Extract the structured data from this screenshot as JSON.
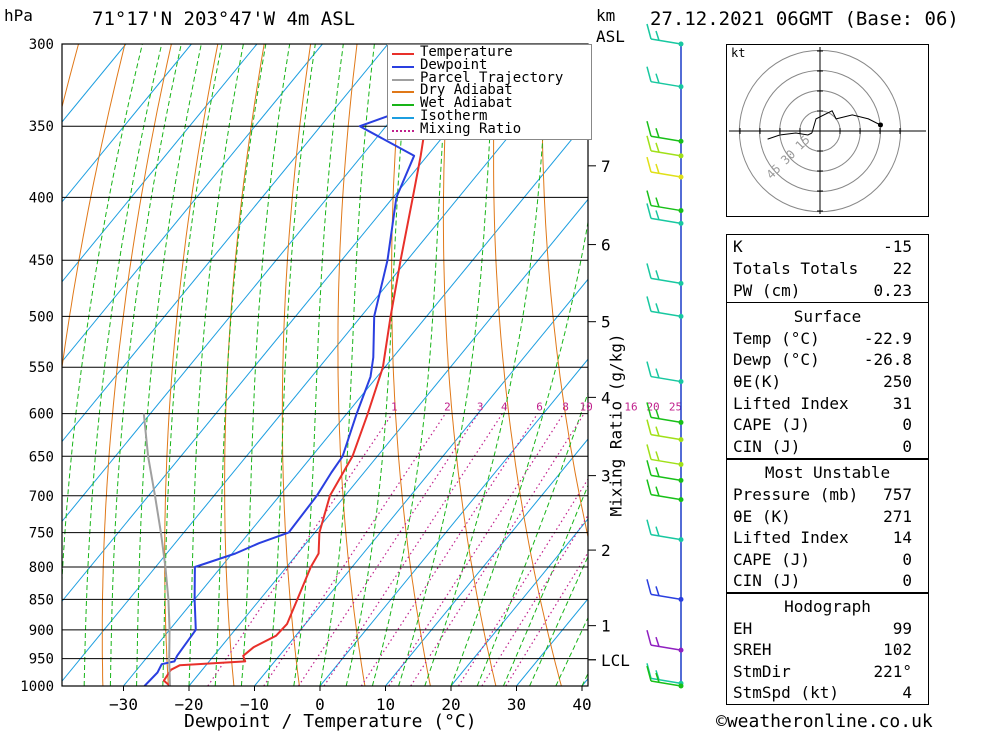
{
  "header": {
    "left_unit": "hPa",
    "location": "71°17'N 203°47'W 4m ASL",
    "right_unit_1": "km",
    "right_unit_2": "ASL",
    "datetime": "27.12.2021 06GMT (Base: 06)"
  },
  "footer": {
    "credit": "©weatheronline.co.uk"
  },
  "legend": [
    {
      "label": "Temperature",
      "color": "#e8302a",
      "style": "solid"
    },
    {
      "label": "Dewpoint",
      "color": "#2a3fe0",
      "style": "solid"
    },
    {
      "label": "Parcel Trajectory",
      "color": "#a0a0a0",
      "style": "solid"
    },
    {
      "label": "Dry Adiabat",
      "color": "#e07818",
      "style": "solid"
    },
    {
      "label": "Wet Adiabat",
      "color": "#18b418",
      "style": "solid"
    },
    {
      "label": "Isotherm",
      "color": "#1c9ee0",
      "style": "solid"
    },
    {
      "label": "Mixing Ratio",
      "color": "#c0208c",
      "style": "dotted"
    }
  ],
  "chart_data": {
    "type": "line",
    "subtype": "skew-T log-P diagram",
    "xlabel": "Dewpoint / Temperature (°C)",
    "ylabel_left": "hPa",
    "ylabel_right": "Mixing Ratio (g/kg)",
    "x_ticks": [
      -30,
      -20,
      -10,
      0,
      10,
      20,
      30,
      40
    ],
    "pressure_ticks": [
      300,
      350,
      400,
      450,
      500,
      550,
      600,
      650,
      700,
      750,
      800,
      850,
      900,
      950,
      1000
    ],
    "km_ticks": [
      {
        "label": "7",
        "p": 377
      },
      {
        "label": "6",
        "p": 437
      },
      {
        "label": "5",
        "p": 505
      },
      {
        "label": "4",
        "p": 582
      },
      {
        "label": "3",
        "p": 674
      },
      {
        "label": "2",
        "p": 775
      },
      {
        "label": "1",
        "p": 893
      },
      {
        "label": "LCL",
        "p": 952
      }
    ],
    "mixing_ratio_labels": [
      "1",
      "2",
      "3",
      "4",
      "6",
      "8",
      "10",
      "16",
      "20",
      "25"
    ],
    "series": [
      {
        "name": "Temperature",
        "color": "#e8302a",
        "points": [
          [
            1000,
            -22.9
          ],
          [
            990,
            -24.5
          ],
          [
            970,
            -24.8
          ],
          [
            962,
            -24.0
          ],
          [
            955,
            -14.5
          ],
          [
            945,
            -15.5
          ],
          [
            930,
            -15.0
          ],
          [
            910,
            -13.0
          ],
          [
            890,
            -12.8
          ],
          [
            850,
            -14.3
          ],
          [
            800,
            -16.3
          ],
          [
            780,
            -16.8
          ],
          [
            750,
            -19.3
          ],
          [
            700,
            -22.3
          ],
          [
            650,
            -23.8
          ],
          [
            600,
            -26.8
          ],
          [
            550,
            -30.3
          ],
          [
            500,
            -35.5
          ],
          [
            450,
            -41.0
          ],
          [
            400,
            -47.0
          ],
          [
            370,
            -51.0
          ],
          [
            350,
            -54.0
          ],
          [
            320,
            -57.0
          ],
          [
            300,
            -60.0
          ]
        ]
      },
      {
        "name": "Dewpoint",
        "color": "#2a3fe0",
        "points": [
          [
            1000,
            -26.8
          ],
          [
            975,
            -26.5
          ],
          [
            960,
            -26.9
          ],
          [
            955,
            -25.3
          ],
          [
            945,
            -25.6
          ],
          [
            900,
            -26.0
          ],
          [
            850,
            -30.0
          ],
          [
            800,
            -34.0
          ],
          [
            780,
            -29.5
          ],
          [
            765,
            -27.2
          ],
          [
            750,
            -24.0
          ],
          [
            700,
            -24.3
          ],
          [
            670,
            -25.0
          ],
          [
            650,
            -25.3
          ],
          [
            600,
            -28.5
          ],
          [
            560,
            -31.0
          ],
          [
            540,
            -33.0
          ],
          [
            500,
            -38.0
          ],
          [
            450,
            -43.0
          ],
          [
            400,
            -49.5
          ],
          [
            370,
            -52.0
          ],
          [
            350,
            -64.0
          ],
          [
            335,
            -57.0
          ],
          [
            320,
            -59.0
          ],
          [
            300,
            -62.0
          ]
        ]
      },
      {
        "name": "Parcel Trajectory",
        "color": "#a0a0a0",
        "points": [
          [
            1000,
            -22.9
          ],
          [
            952,
            -26.3
          ],
          [
            900,
            -30.0
          ],
          [
            850,
            -34.0
          ],
          [
            800,
            -38.5
          ],
          [
            750,
            -43.5
          ],
          [
            700,
            -49.0
          ],
          [
            650,
            -55.0
          ],
          [
            600,
            -61.0
          ]
        ]
      }
    ],
    "surface_marker_p": 952,
    "hodograph": {
      "unit_label": "kt",
      "ring_labels": [
        "15",
        "30",
        "45"
      ],
      "path_kt": [
        [
          -13,
          -2
        ],
        [
          -10,
          -1
        ],
        [
          -6,
          -0.5
        ],
        [
          -3,
          -1
        ],
        [
          -2,
          -0.5
        ]
      ],
      "upper_path_kt": [
        [
          -2,
          -0.5
        ],
        [
          -1,
          3
        ],
        [
          3,
          5
        ],
        [
          4,
          3
        ],
        [
          8,
          4
        ],
        [
          12,
          3
        ],
        [
          15,
          1.5
        ]
      ]
    },
    "wind_barbs": [
      {
        "p": 300,
        "color": "#18c8a0"
      },
      {
        "p": 325,
        "color": "#18c8a0"
      },
      {
        "p": 360,
        "color": "#18c018"
      },
      {
        "p": 370,
        "color": "#a0e018"
      },
      {
        "p": 385,
        "color": "#e0e018"
      },
      {
        "p": 410,
        "color": "#18c018"
      },
      {
        "p": 420,
        "color": "#18c8a0"
      },
      {
        "p": 470,
        "color": "#18c8a0"
      },
      {
        "p": 500,
        "color": "#18c8a0"
      },
      {
        "p": 565,
        "color": "#18c8a0"
      },
      {
        "p": 610,
        "color": "#18c018"
      },
      {
        "p": 630,
        "color": "#a0e018"
      },
      {
        "p": 660,
        "color": "#a0e018"
      },
      {
        "p": 680,
        "color": "#18c018"
      },
      {
        "p": 705,
        "color": "#18c018"
      },
      {
        "p": 760,
        "color": "#18c8a0"
      },
      {
        "p": 850,
        "color": "#2a3fe0"
      },
      {
        "p": 935,
        "color": "#9020c0"
      },
      {
        "p": 995,
        "color": "#18c8a0"
      },
      {
        "p": 1000,
        "color": "#18c018"
      }
    ]
  },
  "indices": {
    "k_label": "K",
    "k_value": "-15",
    "tt_label": "Totals Totals",
    "tt_value": "22",
    "pw_label": "PW (cm)",
    "pw_value": "0.23",
    "surface_title": "Surface",
    "s_temp_label": "Temp (°C)",
    "s_temp_value": "-22.9",
    "s_dewp_label": "Dewp (°C)",
    "s_dewp_value": "-26.8",
    "s_theta_label": "θE(K)",
    "s_theta_value": "250",
    "s_li_label": "Lifted Index",
    "s_li_value": "31",
    "s_cape_label": "CAPE (J)",
    "s_cape_value": "0",
    "s_cin_label": "CIN (J)",
    "s_cin_value": "0",
    "mu_title": "Most Unstable",
    "mu_pres_label": "Pressure (mb)",
    "mu_pres_value": "757",
    "mu_theta_label": "θE (K)",
    "mu_theta_value": "271",
    "mu_li_label": "Lifted Index",
    "mu_li_value": "14",
    "mu_cape_label": "CAPE (J)",
    "mu_cape_value": "0",
    "mu_cin_label": "CIN (J)",
    "mu_cin_value": "0",
    "hodo_title": "Hodograph",
    "eh_label": "EH",
    "eh_value": "99",
    "srh_label": "SREH",
    "srh_value": "102",
    "stmdir_label": "StmDir",
    "stmdir_value": "221°",
    "stmspd_label": "StmSpd (kt)",
    "stmspd_value": "4"
  }
}
